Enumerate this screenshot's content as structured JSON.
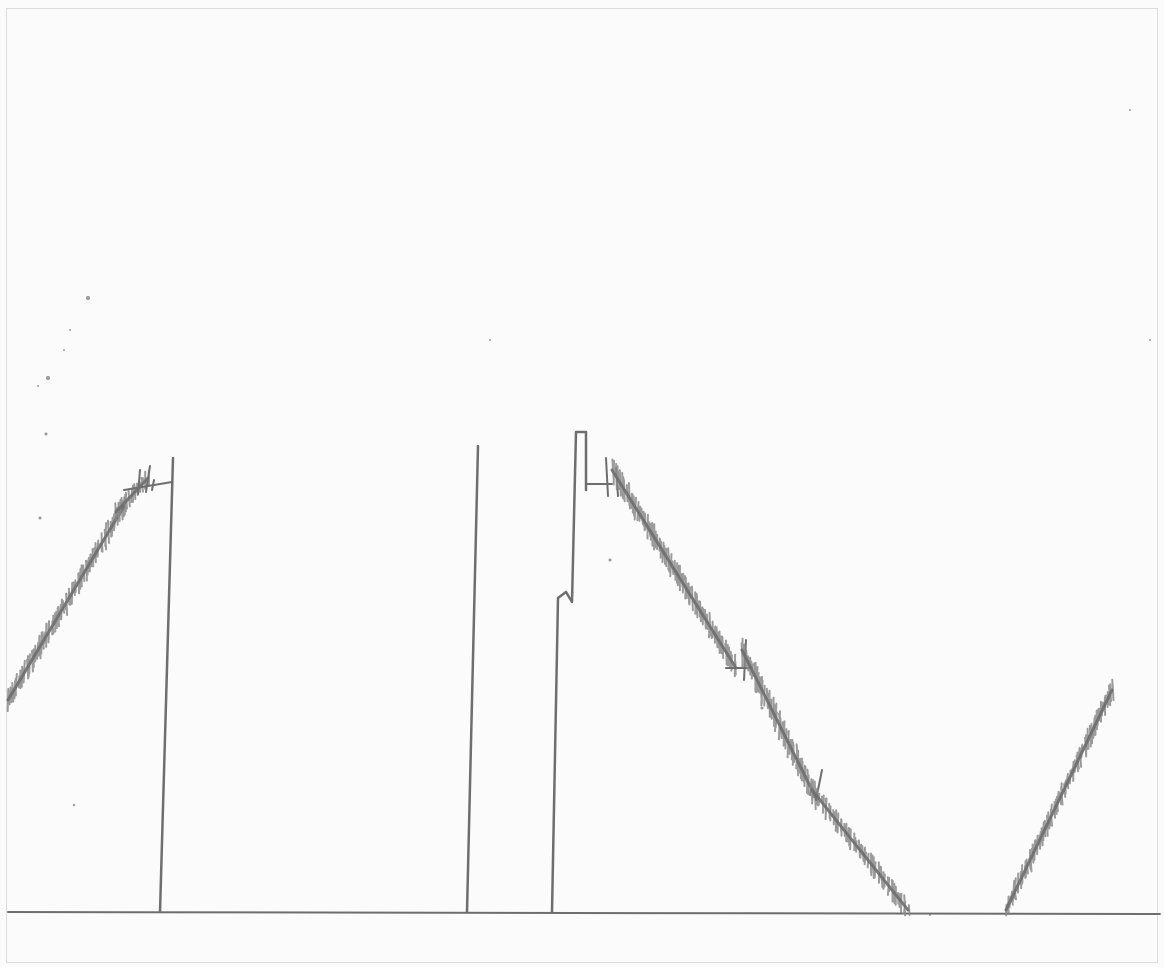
{
  "image": {
    "description_free": true,
    "ink_color": "#6e6e6e",
    "hatch_color": "#8a8a8a",
    "paper_color": "#fbfbfb",
    "speck_color": "#9a9a9a"
  }
}
